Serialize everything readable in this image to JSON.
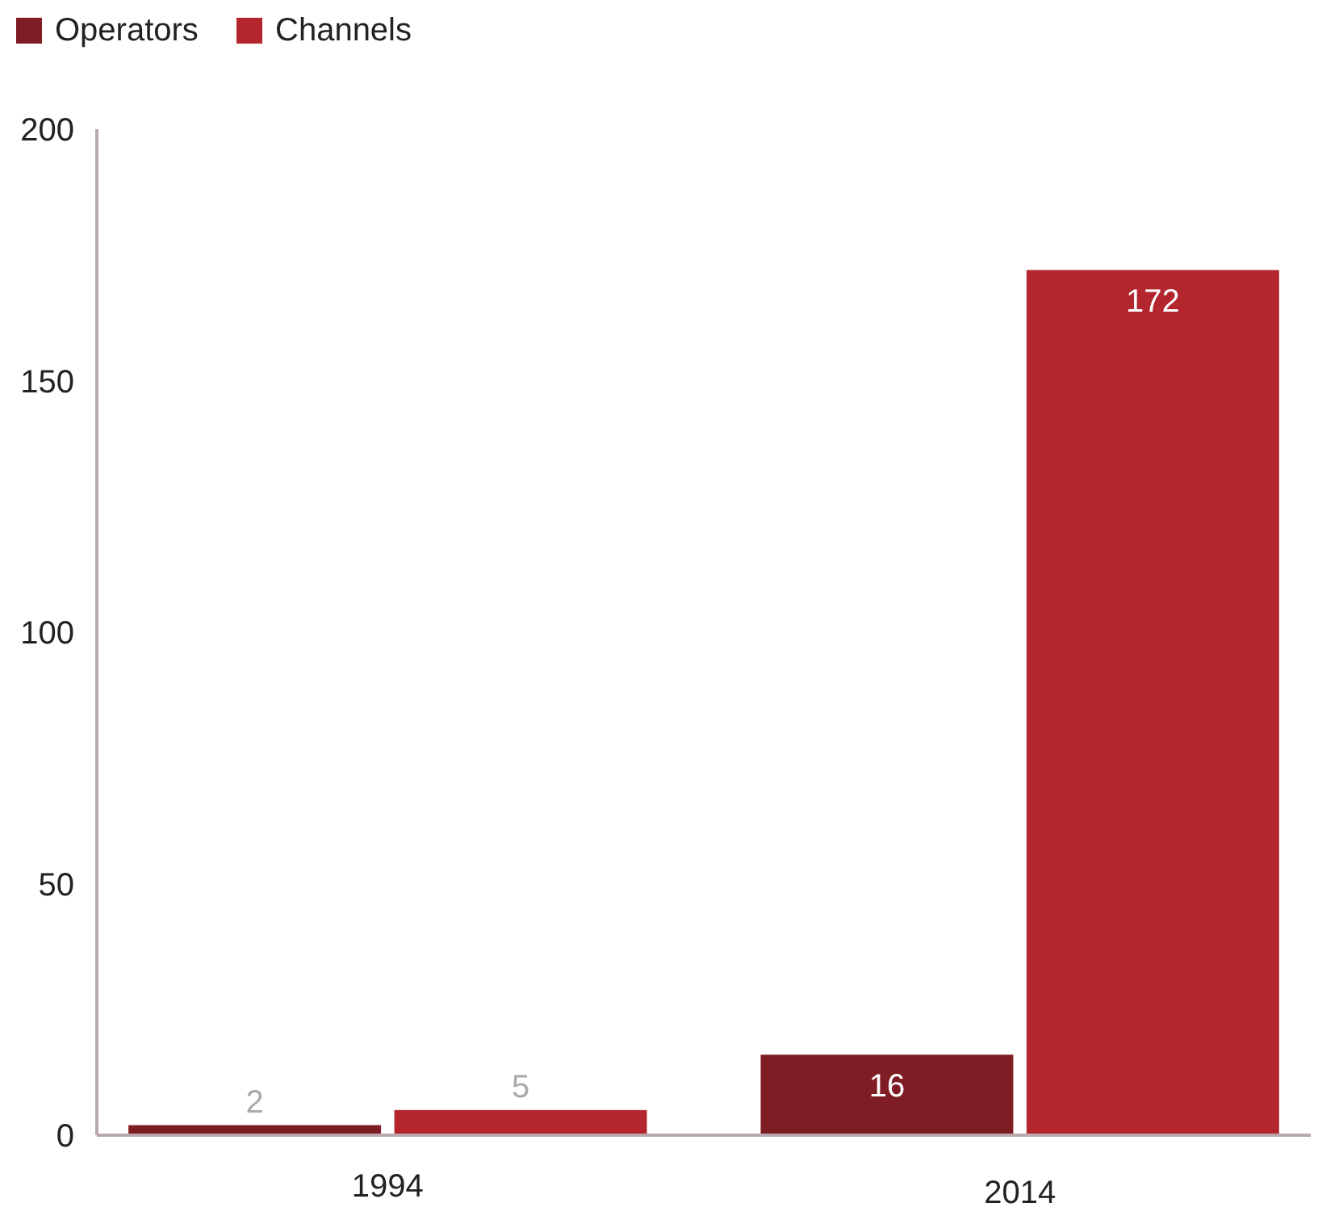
{
  "chart_data": {
    "type": "bar",
    "categories": [
      "1994",
      "2014"
    ],
    "series": [
      {
        "name": "Operators",
        "color": "#7f1d24",
        "values": [
          2,
          16
        ]
      },
      {
        "name": "Channels",
        "color": "#b3262d",
        "values": [
          5,
          172
        ]
      }
    ],
    "ylim": [
      0,
      200
    ],
    "yticks": [
      0,
      50,
      100,
      150,
      200
    ],
    "data_labels": true,
    "legend": "top left",
    "grid": false
  }
}
